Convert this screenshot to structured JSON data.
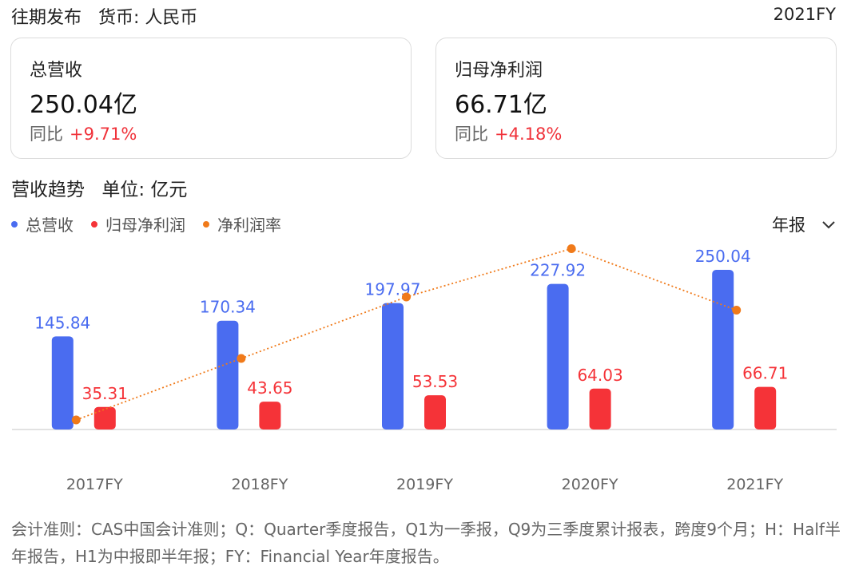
{
  "header": {
    "title": "往期发布",
    "currency": "货币: 人民币",
    "period": "2021FY"
  },
  "cards": [
    {
      "label": "总营收",
      "value": "250.04亿",
      "yoy_label": "同比",
      "yoy_value": "+9.71%"
    },
    {
      "label": "归母净利润",
      "value": "66.71亿",
      "yoy_label": "同比",
      "yoy_value": "+4.18%"
    }
  ],
  "section": {
    "title": "营收趋势",
    "unit": "单位: 亿元"
  },
  "period_selector": {
    "label": "年报",
    "icon": "chevron-down-icon"
  },
  "colors": {
    "revenue": "#4a6cf0",
    "net_profit": "#f53338",
    "margin": "#f07a1a"
  },
  "chart_data": {
    "type": "bar",
    "categories": [
      "2017FY",
      "2018FY",
      "2019FY",
      "2020FY",
      "2021FY"
    ],
    "series": [
      {
        "name": "总营收",
        "type": "bar",
        "values": [
          145.84,
          170.34,
          197.97,
          227.92,
          250.04
        ],
        "labels": [
          "145.84",
          "170.34",
          "197.97",
          "227.92",
          "250.04"
        ]
      },
      {
        "name": "归母净利润",
        "type": "bar",
        "values": [
          35.31,
          43.65,
          53.53,
          64.03,
          66.71
        ],
        "labels": [
          "35.31",
          "43.65",
          "53.53",
          "64.03",
          "66.71"
        ]
      },
      {
        "name": "净利润率",
        "type": "line",
        "values": [
          24.2,
          25.6,
          27.0,
          28.1,
          26.7
        ]
      }
    ],
    "ylim": [
      0,
      260
    ],
    "legend": "top-left"
  },
  "footnote": "会计准则：CAS中国会计准则；Q：Quarter季度报告，Q1为一季报，Q9为三季度累计报表，跨度9个月；H：Half半年报告，H1为中报即半年报；FY：Financial Year年度报告。"
}
